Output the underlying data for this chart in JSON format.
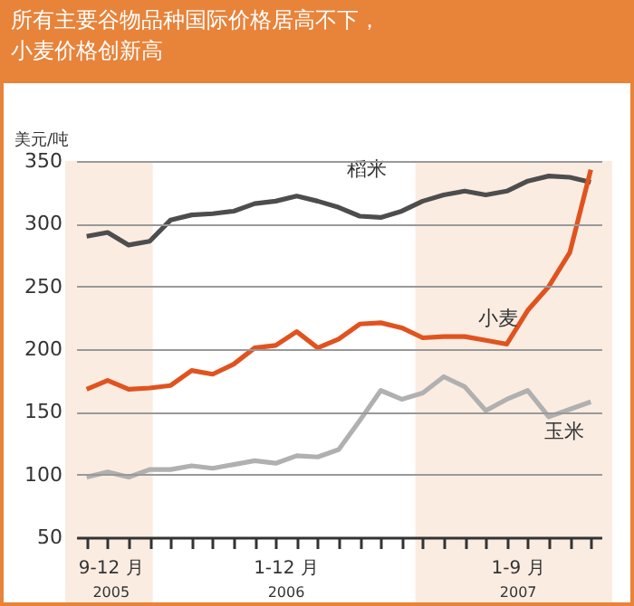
{
  "chart_data": {
    "type": "line",
    "title": "所有主要谷物品种国际价格居高不下，小麦价格创新高",
    "ylabel": "美元/吨",
    "categories": [
      null,
      null,
      null,
      null,
      null,
      null,
      null,
      null,
      null,
      null,
      null,
      null,
      null,
      null,
      null,
      null,
      null,
      null,
      null,
      null,
      null,
      null,
      null,
      null,
      null
    ],
    "ylim": [
      50,
      350
    ],
    "yticks": [
      50,
      100,
      150,
      200,
      250,
      300,
      350
    ],
    "tick_labels": "y",
    "grid": "y",
    "legend": false,
    "series": [
      {
        "name": "稻米",
        "color": "#4d4d4d",
        "values": [
          290,
          293,
          283,
          286,
          303,
          307,
          308,
          310,
          316,
          318,
          322,
          318,
          313,
          306,
          305,
          310,
          318,
          323,
          326,
          323,
          326,
          334,
          338,
          337,
          333
        ]
      },
      {
        "name": "小麦",
        "color": "#e0531f",
        "values": [
          168,
          175,
          168,
          169,
          171,
          183,
          180,
          188,
          201,
          203,
          214,
          201,
          208,
          220,
          221,
          217,
          209,
          210,
          210,
          207,
          204,
          231,
          250,
          277,
          343
        ]
      },
      {
        "name": "玉米",
        "color": "#b0b0b0",
        "values": [
          98,
          102,
          98,
          104,
          104,
          107,
          105,
          108,
          111,
          109,
          115,
          114,
          120,
          143,
          167,
          160,
          165,
          178,
          170,
          151,
          160,
          167,
          146,
          152,
          158
        ]
      }
    ],
    "annotations": [
      "9-12 月",
      "2005",
      "1-12 月",
      "2006",
      "1-9 月",
      "2007"
    ]
  }
}
